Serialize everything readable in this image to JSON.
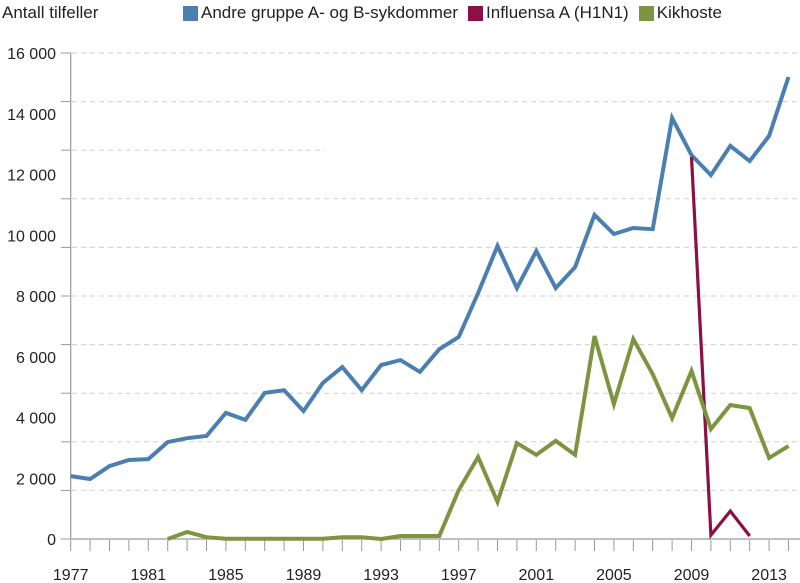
{
  "chart_data": {
    "type": "line",
    "ylabel": "Antall tilfeller",
    "xlabel": "",
    "ylim": [
      0,
      16000
    ],
    "xlim": [
      1977,
      2014
    ],
    "y_tick_labels": [
      "0",
      "2 000",
      "4 000",
      "6 000",
      "8 000",
      "10 000",
      "12 000",
      "14 000",
      "16 000"
    ],
    "y_tick_values": [
      0,
      2000,
      4000,
      6000,
      8000,
      10000,
      12000,
      14000,
      16000
    ],
    "x_tick_labels": [
      "1977",
      "1981",
      "1985",
      "1989",
      "1993",
      "1997",
      "2001",
      "2005",
      "2009",
      "2013"
    ],
    "grid": "horizontal dashed",
    "legend_placement": "top",
    "series": [
      {
        "name": "Andre gruppe A- og B-sykdommer",
        "color": "#4a7fb0",
        "x": [
          1977,
          1978,
          1979,
          1980,
          1981,
          1982,
          1983,
          1984,
          1985,
          1986,
          1987,
          1988,
          1989,
          1990,
          1991,
          1992,
          1993,
          1994,
          1995,
          1996,
          1997,
          1998,
          1999,
          2000,
          2001,
          2002,
          2003,
          2004,
          2005,
          2006,
          2007,
          2008,
          2009,
          2010,
          2011,
          2012,
          2013,
          2014
        ],
        "values": [
          2070,
          1975,
          2400,
          2600,
          2630,
          3190,
          3320,
          3390,
          4150,
          3920,
          4810,
          4900,
          4210,
          5140,
          5660,
          4900,
          5730,
          5890,
          5500,
          6250,
          6650,
          8100,
          9650,
          8260,
          9480,
          8260,
          8950,
          10670,
          10040,
          10240,
          10200,
          13860,
          12640,
          11980,
          12940,
          12440,
          13270,
          15210
        ]
      },
      {
        "name": "Influensa A (H1N1)",
        "color": "#8c1048",
        "x": [
          2009,
          2010,
          2011,
          2012
        ],
        "values": [
          12580,
          130,
          920,
          100
        ]
      },
      {
        "name": "Kikhoste",
        "color": "#7d9440",
        "x": [
          1982,
          1983,
          1984,
          1985,
          1986,
          1987,
          1988,
          1989,
          1990,
          1991,
          1992,
          1993,
          1994,
          1995,
          1996,
          1997,
          1998,
          1999,
          2000,
          2001,
          2002,
          2003,
          2004,
          2005,
          2006,
          2007,
          2008,
          2009,
          2010,
          2011,
          2012,
          2013,
          2014
        ],
        "values": [
          0,
          230,
          60,
          10,
          10,
          10,
          10,
          10,
          10,
          60,
          60,
          0,
          100,
          100,
          100,
          1610,
          2700,
          1220,
          3160,
          2770,
          3230,
          2770,
          6680,
          4440,
          6580,
          5430,
          3980,
          5530,
          3620,
          4410,
          4310,
          2670,
          3060
        ]
      }
    ]
  }
}
